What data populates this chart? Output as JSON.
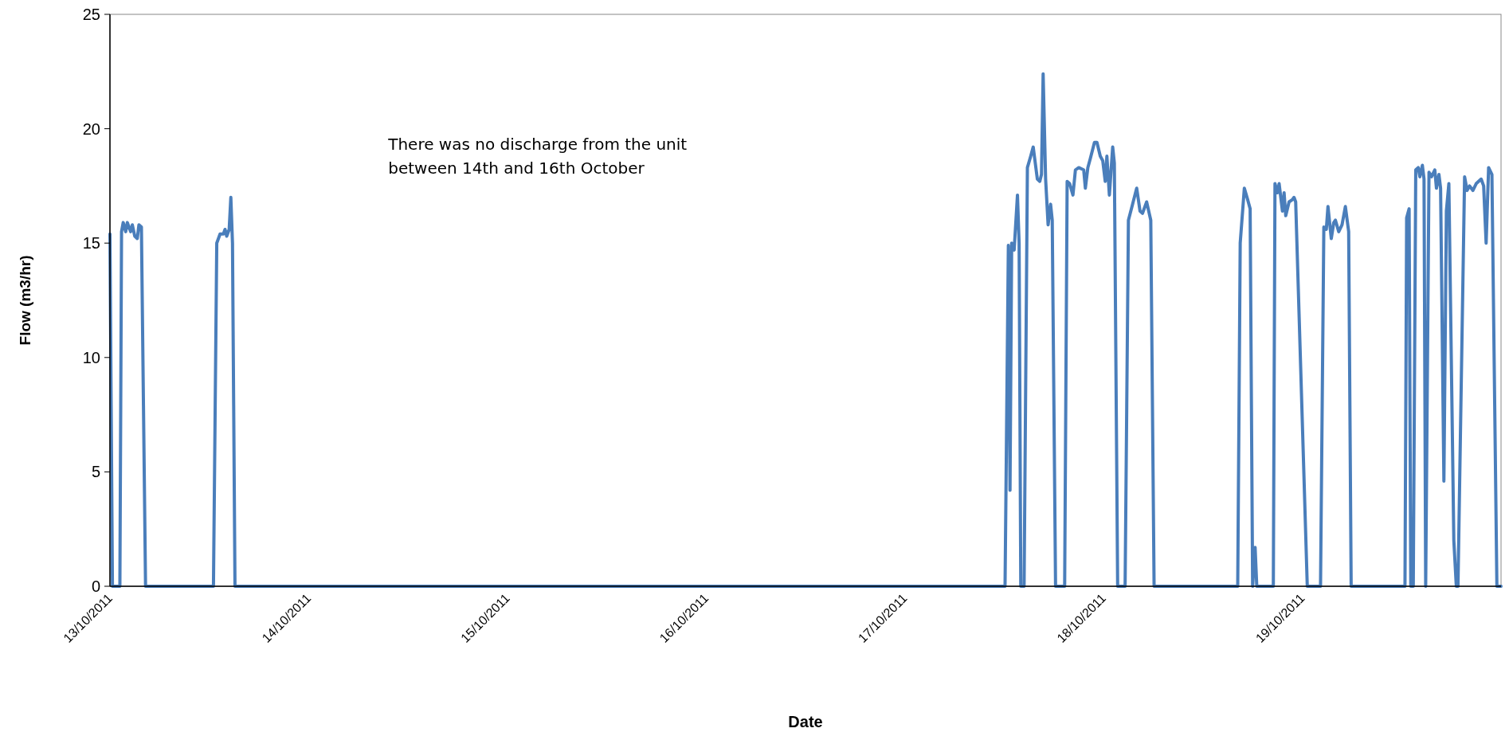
{
  "chart_data": {
    "type": "line",
    "xlabel": "Date",
    "ylabel": "Flow (m3/hr)",
    "annotations": [
      "There was no discharge from the unit between 14th and 16th October"
    ],
    "xlim": [
      "2011-10-13",
      "2011-10-20"
    ],
    "xticks": [
      {
        "value": "2011-10-13",
        "label": "13/10/2011"
      },
      {
        "value": "2011-10-14",
        "label": "14/10/2011"
      },
      {
        "value": "2011-10-15",
        "label": "15/10/2011"
      },
      {
        "value": "2011-10-16",
        "label": "16/10/2011"
      },
      {
        "value": "2011-10-17",
        "label": "17/10/2011"
      },
      {
        "value": "2011-10-18",
        "label": "18/10/2011"
      },
      {
        "value": "2011-10-19",
        "label": "19/10/2011"
      }
    ],
    "ylim": [
      0,
      25
    ],
    "yticks": [
      0,
      5,
      10,
      15,
      20,
      25
    ],
    "grid": false,
    "marker": "none",
    "line_style": "solid",
    "series": [
      {
        "color": "#4a7ebb",
        "x": [
          "2011-10-13T00:00",
          "2011-10-13T00:18",
          "2011-10-13T01:12",
          "2011-10-13T01:24",
          "2011-10-13T01:36",
          "2011-10-13T01:54",
          "2011-10-13T02:06",
          "2011-10-13T02:18",
          "2011-10-13T02:30",
          "2011-10-13T02:42",
          "2011-10-13T03:00",
          "2011-10-13T03:18",
          "2011-10-13T03:30",
          "2011-10-13T03:48",
          "2011-10-13T04:18",
          "2011-10-13T12:30",
          "2011-10-13T12:54",
          "2011-10-13T13:18",
          "2011-10-13T13:42",
          "2011-10-13T13:54",
          "2011-10-13T14:06",
          "2011-10-13T14:24",
          "2011-10-13T14:36",
          "2011-10-13T14:48",
          "2011-10-13T15:06",
          "2011-10-17T12:06",
          "2011-10-17T12:30",
          "2011-10-17T12:42",
          "2011-10-17T12:54",
          "2011-10-17T13:12",
          "2011-10-17T13:36",
          "2011-10-17T13:48",
          "2011-10-17T14:00",
          "2011-10-17T14:24",
          "2011-10-17T14:48",
          "2011-10-17T15:12",
          "2011-10-17T15:30",
          "2011-10-17T16:00",
          "2011-10-17T16:18",
          "2011-10-17T16:30",
          "2011-10-17T16:42",
          "2011-10-17T17:00",
          "2011-10-17T17:18",
          "2011-10-17T17:36",
          "2011-10-17T17:48",
          "2011-10-17T18:12",
          "2011-10-17T19:18",
          "2011-10-17T19:36",
          "2011-10-17T19:54",
          "2011-10-17T20:18",
          "2011-10-17T20:36",
          "2011-10-17T21:00",
          "2011-10-17T21:36",
          "2011-10-17T21:48",
          "2011-10-17T22:06",
          "2011-10-17T22:24",
          "2011-10-17T22:54",
          "2011-10-17T23:12",
          "2011-10-17T23:36",
          "2011-10-17T23:54",
          "2011-10-18T00:12",
          "2011-10-18T00:24",
          "2011-10-18T00:42",
          "2011-10-18T01:06",
          "2011-10-18T01:18",
          "2011-10-18T01:42",
          "2011-10-18T02:36",
          "2011-10-18T03:00",
          "2011-10-18T03:30",
          "2011-10-18T04:00",
          "2011-10-18T04:24",
          "2011-10-18T04:42",
          "2011-10-18T05:00",
          "2011-10-18T05:12",
          "2011-10-18T05:42",
          "2011-10-18T06:06",
          "2011-10-18T16:12",
          "2011-10-18T16:30",
          "2011-10-18T17:00",
          "2011-10-18T17:24",
          "2011-10-18T17:42",
          "2011-10-18T18:00",
          "2011-10-18T18:18",
          "2011-10-18T18:30",
          "2011-10-18T20:30",
          "2011-10-18T20:42",
          "2011-10-18T21:00",
          "2011-10-18T21:12",
          "2011-10-18T21:36",
          "2011-10-18T21:48",
          "2011-10-18T22:00",
          "2011-10-18T22:24",
          "2011-10-18T22:48",
          "2011-10-18T23:00",
          "2011-10-18T23:12",
          "2011-10-19T00:36",
          "2011-10-19T02:12",
          "2011-10-19T02:36",
          "2011-10-19T02:54",
          "2011-10-19T03:06",
          "2011-10-19T03:30",
          "2011-10-19T03:48",
          "2011-10-19T04:00",
          "2011-10-19T04:24",
          "2011-10-19T04:48",
          "2011-10-19T05:12",
          "2011-10-19T05:36",
          "2011-10-19T05:54",
          "2011-10-19T12:24",
          "2011-10-19T12:36",
          "2011-10-19T12:54",
          "2011-10-19T13:06",
          "2011-10-19T13:24",
          "2011-10-19T13:42",
          "2011-10-19T14:00",
          "2011-10-19T14:12",
          "2011-10-19T14:30",
          "2011-10-19T14:42",
          "2011-10-19T14:54",
          "2011-10-19T15:18",
          "2011-10-19T15:36",
          "2011-10-19T16:00",
          "2011-10-19T16:12",
          "2011-10-19T16:30",
          "2011-10-19T16:42",
          "2011-10-19T17:06",
          "2011-10-19T17:24",
          "2011-10-19T17:42",
          "2011-10-19T18:18",
          "2011-10-19T18:36",
          "2011-10-19T18:48",
          "2011-10-19T19:36",
          "2011-10-19T19:54",
          "2011-10-19T20:12",
          "2011-10-19T20:36",
          "2011-10-19T21:00",
          "2011-10-19T21:36",
          "2011-10-19T21:54",
          "2011-10-19T22:12",
          "2011-10-19T22:30",
          "2011-10-19T22:54",
          "2011-10-19T23:30",
          "2011-10-20T00:00"
        ],
        "values": [
          15.4,
          0,
          0,
          15.5,
          15.9,
          15.5,
          15.9,
          15.7,
          15.5,
          15.8,
          15.3,
          15.2,
          15.8,
          15.7,
          0,
          0,
          15.0,
          15.4,
          15.4,
          15.6,
          15.3,
          15.6,
          17.0,
          15.0,
          0,
          0,
          14.9,
          4.2,
          15.0,
          14.7,
          17.1,
          15.0,
          0,
          0,
          18.3,
          18.8,
          19.2,
          17.8,
          17.7,
          18.0,
          22.4,
          17.8,
          15.8,
          16.7,
          16.0,
          0,
          0,
          17.7,
          17.6,
          17.1,
          18.2,
          18.3,
          18.2,
          17.4,
          18.3,
          18.7,
          19.4,
          19.4,
          18.8,
          18.6,
          17.7,
          18.8,
          17.1,
          19.2,
          18.5,
          0,
          0,
          16.0,
          16.7,
          17.4,
          16.4,
          16.3,
          16.6,
          16.8,
          16.0,
          0,
          0,
          15.0,
          17.4,
          16.9,
          16.5,
          0,
          1.7,
          0,
          0,
          17.6,
          17.2,
          17.6,
          16.4,
          17.2,
          16.2,
          16.8,
          16.9,
          17.0,
          16.8,
          0,
          0,
          15.7,
          15.6,
          16.6,
          15.2,
          15.9,
          16.0,
          15.5,
          15.8,
          16.6,
          15.5,
          0,
          0,
          16.1,
          16.5,
          0,
          0,
          18.2,
          18.3,
          17.9,
          18.4,
          17.8,
          0,
          18.1,
          17.9,
          18.2,
          17.4,
          18.0,
          17.4,
          4.6,
          16.4,
          17.6,
          2,
          0,
          0,
          17.9,
          17.3,
          17.5,
          17.3,
          17.6,
          17.8,
          17.5,
          15.0,
          18.3,
          18.0,
          0,
          0
        ]
      }
    ]
  }
}
